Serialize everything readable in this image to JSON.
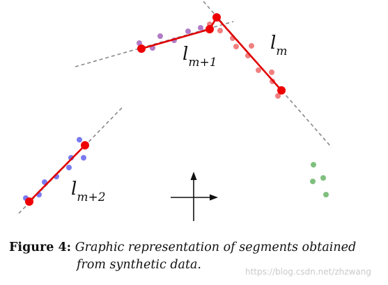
{
  "diagram": {
    "segments": [
      {
        "id": "m",
        "base": "l",
        "sub": "m",
        "color": "#f08080"
      },
      {
        "id": "m+1",
        "base": "l",
        "sub": "m+1",
        "color": "#b07cc6"
      },
      {
        "id": "m+2",
        "base": "l",
        "sub": "m+2",
        "color": "#7a7af0"
      }
    ],
    "extra_points_color": "#7fc07f",
    "segment_line_color": "#e00000",
    "endpoint_color": "#ee0000",
    "extension_color": "#888888"
  },
  "caption": {
    "figure_label": "Figure 4:",
    "text_line1": "Graphic representation of segments obtained",
    "text_line2": "from synthetic data."
  },
  "watermark": "https://blog.csdn.net/zhzwang"
}
